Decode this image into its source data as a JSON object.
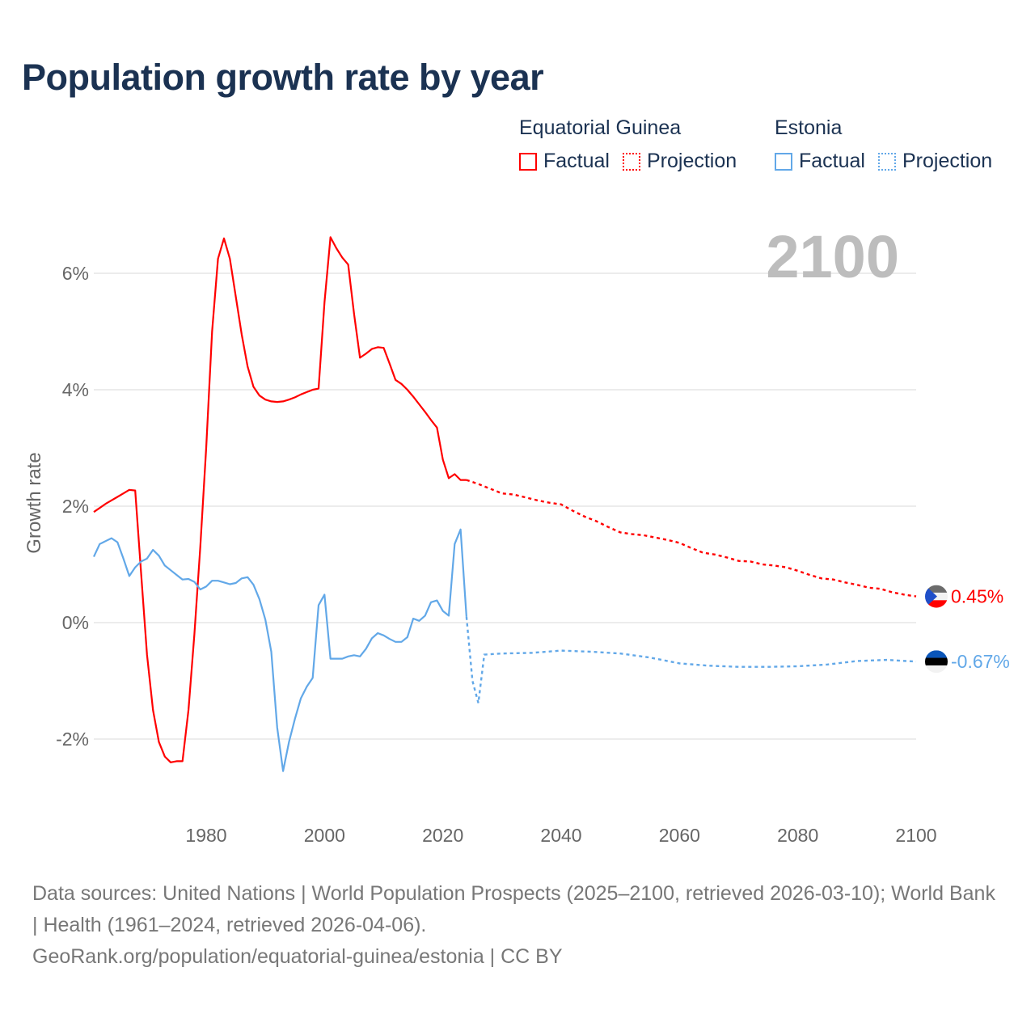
{
  "title": "Population growth rate by year",
  "legend": {
    "groups": [
      {
        "name": "Equatorial Guinea",
        "color": "#ff0000",
        "factual_label": "Factual",
        "projection_label": "Projection"
      },
      {
        "name": "Estonia",
        "color": "#62a8e8",
        "factual_label": "Factual",
        "projection_label": "Projection"
      }
    ]
  },
  "footer": {
    "sources": "Data sources: United Nations | World Population Prospects (2025–2100, retrieved 2026-03-10); World Bank | Health (1961–2024, retrieved 2026-04-06).",
    "credit": "GeoRank.org/population/equatorial-guinea/estonia | CC BY"
  },
  "chart_data": {
    "type": "line",
    "title": "Population growth rate by year",
    "ylabel": "Growth rate",
    "xlabel": "",
    "year_indicator": "2100",
    "xlim": [
      1961,
      2100
    ],
    "ylim": [
      -3.1,
      7.0
    ],
    "x_ticks": [
      1980,
      2000,
      2020,
      2040,
      2060,
      2080,
      2100
    ],
    "y_ticks": [
      -2,
      0,
      2,
      4,
      6
    ],
    "y_tick_labels": [
      "-2%",
      "0%",
      "2%",
      "4%",
      "6%"
    ],
    "grid": true,
    "series": [
      {
        "name": "Equatorial Guinea",
        "color": "#ff0000",
        "end_label": "0.45%",
        "flag": {
          "top": "#6b6b6b",
          "middle": "#f2f2f2",
          "bottom": "#ff0000",
          "hoist": "#1f4fc9"
        },
        "factual": {
          "x": [
            1961,
            1962,
            1963,
            1964,
            1965,
            1966,
            1967,
            1968,
            1969,
            1970,
            1971,
            1972,
            1973,
            1974,
            1975,
            1976,
            1977,
            1978,
            1979,
            1980,
            1981,
            1982,
            1983,
            1984,
            1985,
            1986,
            1987,
            1988,
            1989,
            1990,
            1991,
            1992,
            1993,
            1994,
            1995,
            1996,
            1997,
            1998,
            1999,
            2000,
            2001,
            2002,
            2003,
            2004,
            2005,
            2006,
            2007,
            2008,
            2009,
            2010,
            2011,
            2012,
            2013,
            2014,
            2015,
            2016,
            2017,
            2018,
            2019,
            2020,
            2021,
            2022,
            2023,
            2024
          ],
          "y": [
            1.9,
            1.97,
            2.04,
            2.1,
            2.16,
            2.22,
            2.28,
            2.27,
            0.85,
            -0.55,
            -1.5,
            -2.05,
            -2.3,
            -2.4,
            -2.38,
            -2.38,
            -1.5,
            -0.2,
            1.3,
            3.0,
            5.0,
            6.25,
            6.6,
            6.25,
            5.6,
            4.95,
            4.4,
            4.05,
            3.9,
            3.83,
            3.8,
            3.79,
            3.8,
            3.83,
            3.87,
            3.92,
            3.96,
            4.0,
            4.02,
            5.5,
            6.62,
            6.43,
            6.27,
            6.15,
            5.3,
            4.55,
            4.62,
            4.7,
            4.73,
            4.72,
            4.45,
            4.17,
            4.1,
            4.0,
            3.88,
            3.75,
            3.62,
            3.48,
            3.35,
            2.8,
            2.48,
            2.55,
            2.45,
            2.45
          ]
        },
        "projection": {
          "x": [
            2024,
            2026,
            2028,
            2030,
            2032,
            2034,
            2036,
            2038,
            2040,
            2042,
            2044,
            2046,
            2048,
            2050,
            2052,
            2054,
            2056,
            2058,
            2060,
            2062,
            2064,
            2066,
            2068,
            2070,
            2072,
            2074,
            2076,
            2078,
            2080,
            2082,
            2084,
            2086,
            2088,
            2090,
            2092,
            2094,
            2096,
            2098,
            2100
          ],
          "y": [
            2.45,
            2.38,
            2.3,
            2.22,
            2.2,
            2.15,
            2.1,
            2.06,
            2.03,
            1.92,
            1.82,
            1.74,
            1.64,
            1.55,
            1.52,
            1.5,
            1.46,
            1.42,
            1.37,
            1.28,
            1.2,
            1.17,
            1.12,
            1.06,
            1.05,
            1.0,
            0.98,
            0.95,
            0.89,
            0.82,
            0.76,
            0.74,
            0.69,
            0.65,
            0.6,
            0.58,
            0.52,
            0.48,
            0.45
          ]
        }
      },
      {
        "name": "Estonia",
        "color": "#62a8e8",
        "end_label": "-0.67%",
        "flag": {
          "top": "#0a55b8",
          "middle": "#000000",
          "bottom": "#f2f2f2"
        },
        "factual": {
          "x": [
            1961,
            1962,
            1963,
            1964,
            1965,
            1966,
            1967,
            1968,
            1969,
            1970,
            1971,
            1972,
            1973,
            1974,
            1975,
            1976,
            1977,
            1978,
            1979,
            1980,
            1981,
            1982,
            1983,
            1984,
            1985,
            1986,
            1987,
            1988,
            1989,
            1990,
            1991,
            1992,
            1993,
            1994,
            1995,
            1996,
            1997,
            1998,
            1999,
            2000,
            2001,
            2002,
            2003,
            2004,
            2005,
            2006,
            2007,
            2008,
            2009,
            2010,
            2011,
            2012,
            2013,
            2014,
            2015,
            2016,
            2017,
            2018,
            2019,
            2020,
            2021,
            2022,
            2023,
            2024
          ],
          "y": [
            1.13,
            1.35,
            1.4,
            1.45,
            1.38,
            1.1,
            0.8,
            0.95,
            1.05,
            1.1,
            1.25,
            1.15,
            0.98,
            0.9,
            0.82,
            0.74,
            0.75,
            0.7,
            0.57,
            0.62,
            0.72,
            0.72,
            0.69,
            0.66,
            0.68,
            0.76,
            0.78,
            0.65,
            0.4,
            0.05,
            -0.5,
            -1.8,
            -2.55,
            -2.05,
            -1.65,
            -1.3,
            -1.1,
            -0.95,
            0.3,
            0.48,
            -0.62,
            -0.62,
            -0.62,
            -0.58,
            -0.56,
            -0.58,
            -0.45,
            -0.27,
            -0.18,
            -0.22,
            -0.28,
            -0.33,
            -0.33,
            -0.25,
            0.07,
            0.03,
            0.12,
            0.35,
            0.38,
            0.2,
            0.12,
            1.35,
            1.6,
            0.1
          ]
        },
        "projection": {
          "x": [
            2024,
            2025,
            2026,
            2027,
            2030,
            2035,
            2040,
            2045,
            2050,
            2055,
            2060,
            2065,
            2070,
            2075,
            2080,
            2085,
            2090,
            2095,
            2100
          ],
          "y": [
            0.1,
            -1.0,
            -1.38,
            -0.55,
            -0.53,
            -0.52,
            -0.48,
            -0.5,
            -0.53,
            -0.6,
            -0.7,
            -0.74,
            -0.76,
            -0.76,
            -0.75,
            -0.72,
            -0.66,
            -0.64,
            -0.67
          ]
        }
      }
    ]
  }
}
